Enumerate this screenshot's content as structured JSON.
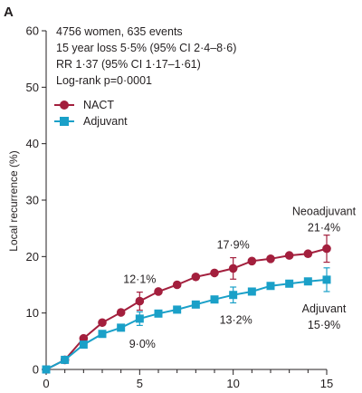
{
  "panel_label": "A",
  "info_lines": [
    "4756 women, 635 events",
    "15 year loss 5·5% (95% CI 2·4–8·6)",
    "RR 1·37 (95% CI 1·17–1·61)",
    "Log-rank p=0·0001"
  ],
  "colors": {
    "nact": "#a31f3d",
    "adjuvant": "#1aa0c8",
    "axis": "#231f20"
  },
  "chart_data": {
    "type": "line",
    "title": "",
    "xlabel": "",
    "ylabel": "Local recurrence (%)",
    "xlim": [
      0,
      15
    ],
    "ylim": [
      0,
      60
    ],
    "xticks": [
      0,
      5,
      10,
      15
    ],
    "yticks": [
      0,
      10,
      20,
      30,
      40,
      50,
      60
    ],
    "grid": false,
    "legend_position": "upper-left",
    "series": [
      {
        "name": "NACT",
        "marker": "circle",
        "color": "#a31f3d",
        "x": [
          0,
          1,
          2,
          3,
          4,
          5,
          6,
          7,
          8,
          9,
          10,
          11,
          12,
          13,
          14,
          15
        ],
        "y": [
          0,
          1.7,
          5.5,
          8.3,
          10.1,
          12.1,
          13.8,
          15.0,
          16.4,
          17.1,
          17.9,
          19.2,
          19.6,
          20.2,
          20.5,
          21.4
        ],
        "error_bars": [
          {
            "x": 5,
            "lower": 10.5,
            "upper": 13.7
          },
          {
            "x": 10,
            "lower": 16.0,
            "upper": 19.8
          },
          {
            "x": 15,
            "lower": 19.0,
            "upper": 23.8
          }
        ]
      },
      {
        "name": "Adjuvant",
        "marker": "square",
        "color": "#1aa0c8",
        "x": [
          0,
          1,
          2,
          3,
          4,
          5,
          6,
          7,
          8,
          9,
          10,
          11,
          12,
          13,
          14,
          15
        ],
        "y": [
          0,
          1.7,
          4.4,
          6.3,
          7.4,
          9.0,
          9.9,
          10.6,
          11.5,
          12.4,
          13.2,
          13.8,
          14.8,
          15.2,
          15.6,
          15.9
        ],
        "error_bars": [
          {
            "x": 5,
            "lower": 7.8,
            "upper": 10.2
          },
          {
            "x": 10,
            "lower": 11.8,
            "upper": 14.6
          },
          {
            "x": 15,
            "lower": 13.8,
            "upper": 18.0
          }
        ]
      }
    ],
    "annotations": [
      {
        "text": "12·1%",
        "x": 5,
        "y": 12.1
      },
      {
        "text": "9·0%",
        "x": 5,
        "y": 9.0
      },
      {
        "text": "17·9%",
        "x": 10,
        "y": 17.9
      },
      {
        "text": "13·2%",
        "x": 10,
        "y": 13.2
      },
      {
        "text": "Neoadjuvant",
        "x": 15,
        "y": 21.4
      },
      {
        "text": "21·4%",
        "x": 15,
        "y": 21.4
      },
      {
        "text": "Adjuvant",
        "x": 15,
        "y": 15.9
      },
      {
        "text": "15·9%",
        "x": 15,
        "y": 15.9
      }
    ]
  }
}
